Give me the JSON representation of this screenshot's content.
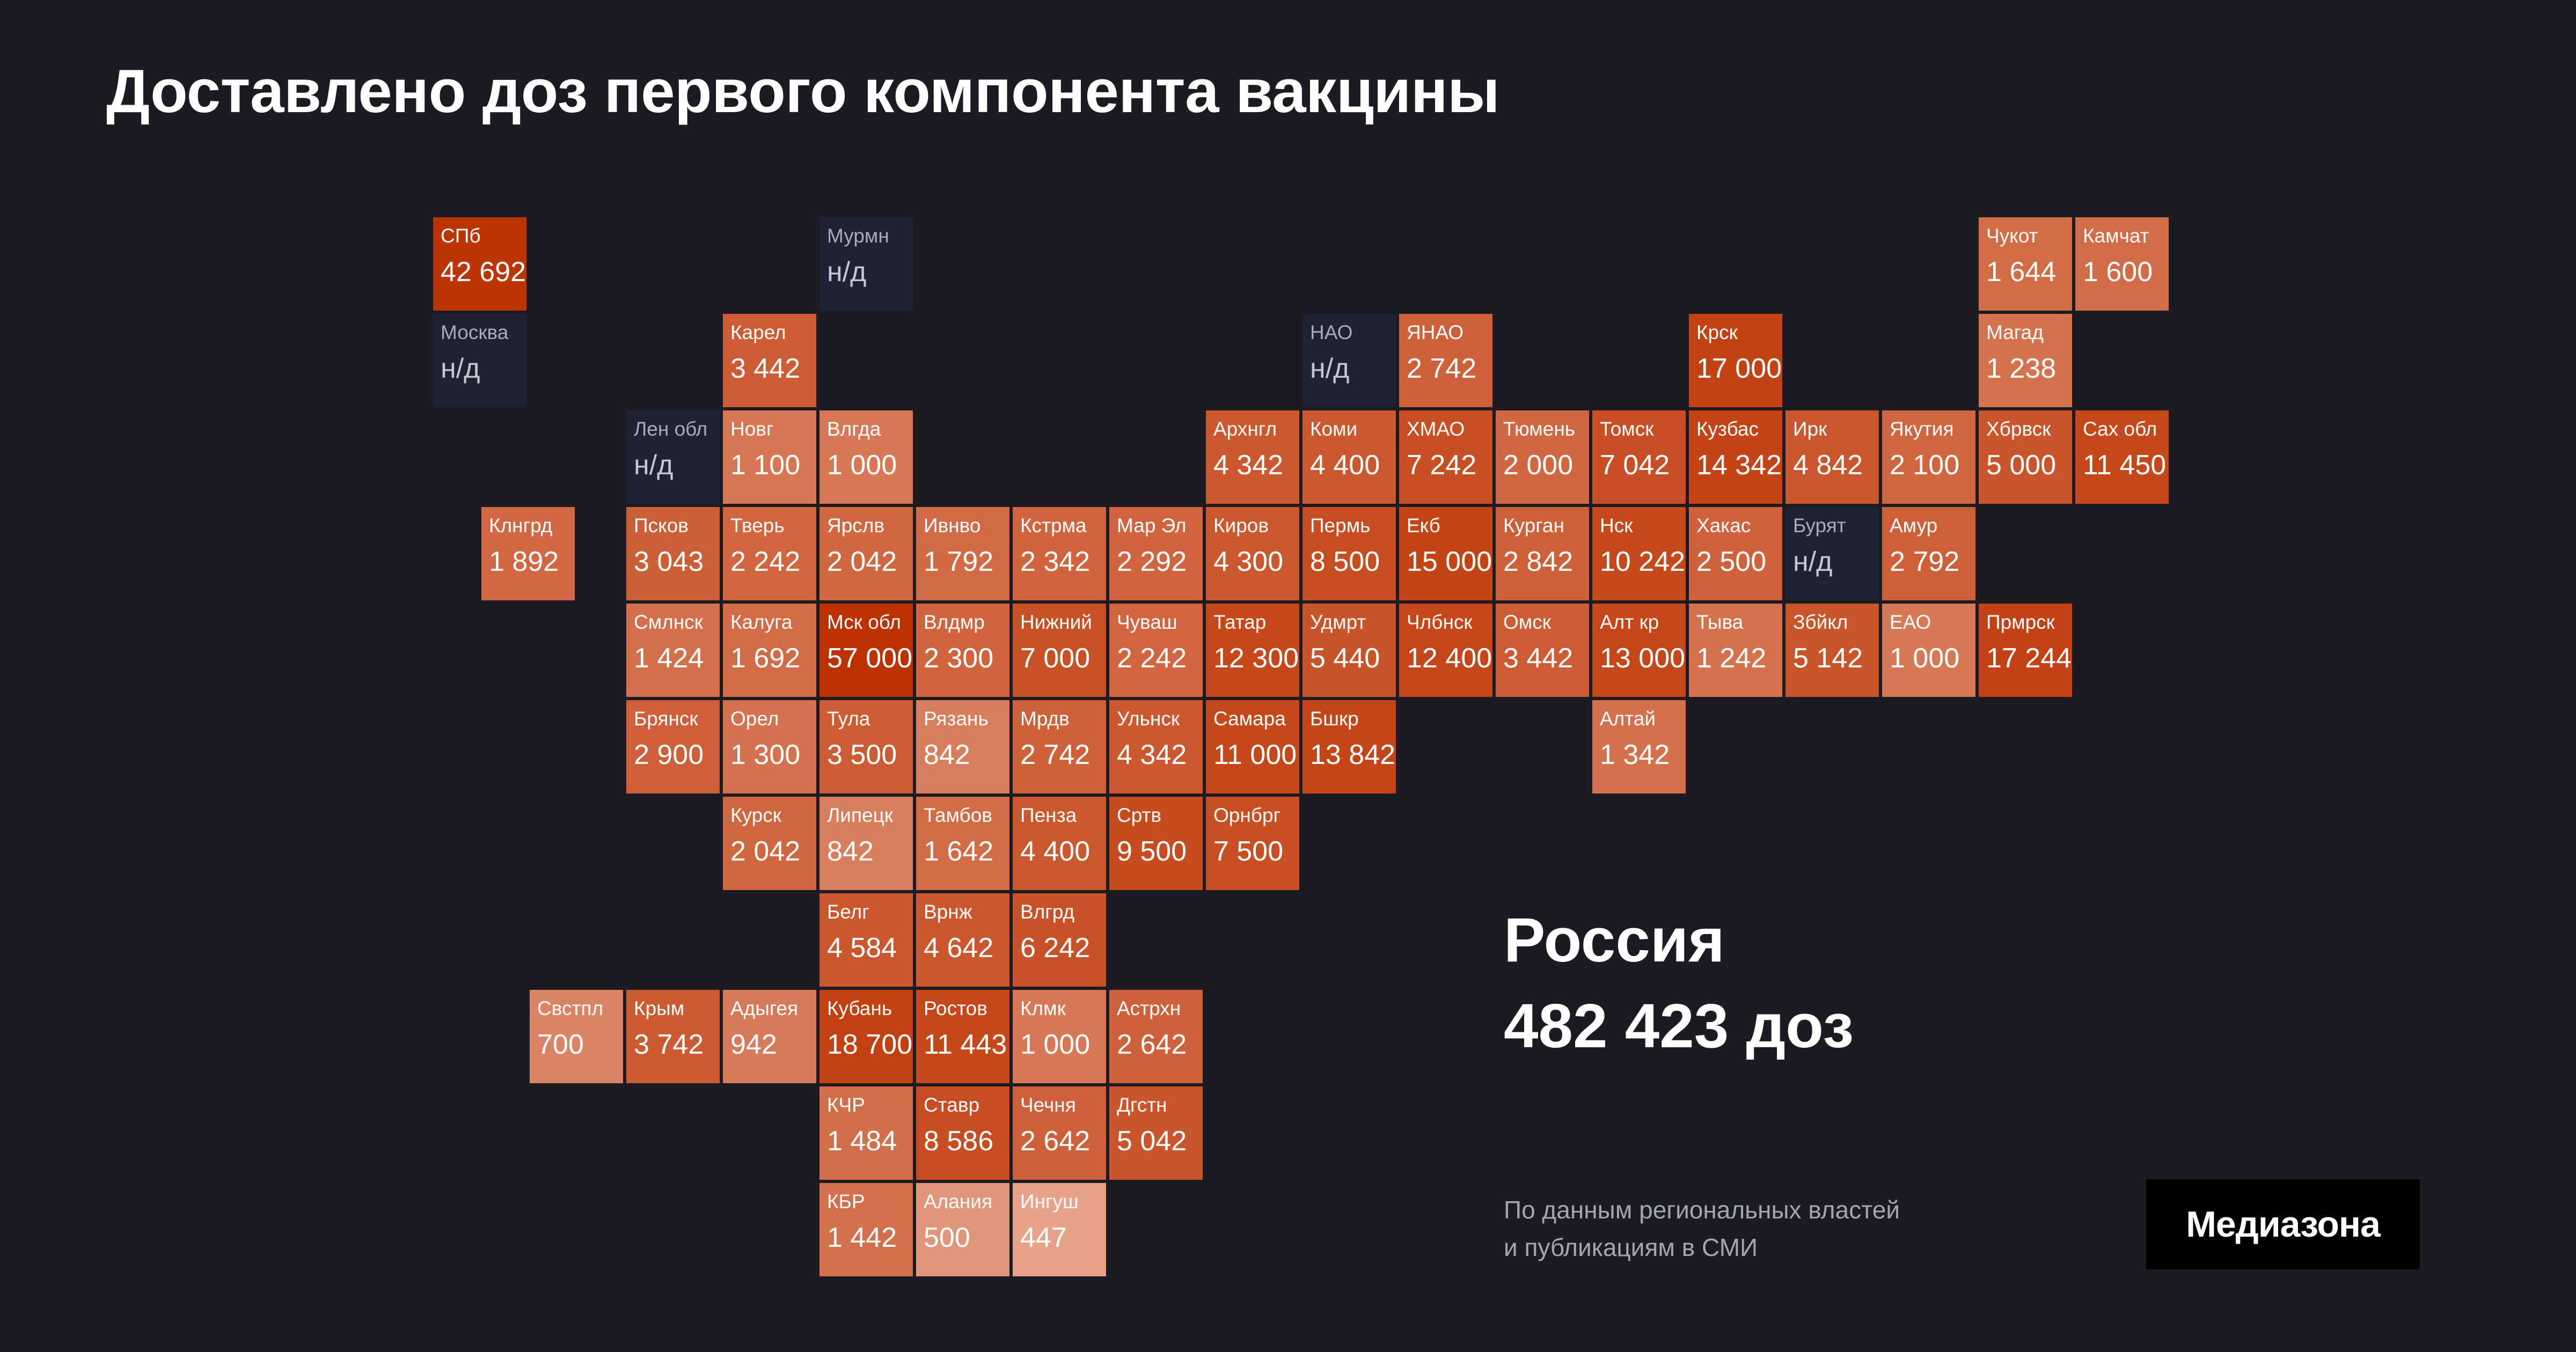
{
  "title": "Доставлено доз первого компонента вакцины",
  "total": {
    "title": "Россия",
    "value": "482 423 доз"
  },
  "source": {
    "line1": "По данным региональных властей",
    "line2": "и публикациям в СМИ"
  },
  "logo": "Медиазона",
  "colors": {
    "background": "#1b1b21",
    "nodata": "#1e2333",
    "light": "#e6a38a",
    "dark": "#bd3100"
  },
  "chart_data": {
    "type": "heatmap",
    "tiles": [
      {
        "label": "СПб",
        "display": "42 692",
        "value": 42692,
        "col": 0,
        "row": 0
      },
      {
        "label": "Мурмн",
        "display": "н/д",
        "value": null,
        "col": 4,
        "row": 0
      },
      {
        "label": "Чукот",
        "display": "1 644",
        "value": 1644,
        "col": 16,
        "row": 0
      },
      {
        "label": "Камчат",
        "display": "1 600",
        "value": 1600,
        "col": 17,
        "row": 0
      },
      {
        "label": "Москва",
        "display": "н/д",
        "value": null,
        "col": 0,
        "row": 1
      },
      {
        "label": "Карел",
        "display": "3 442",
        "value": 3442,
        "col": 3,
        "row": 1
      },
      {
        "label": "НАО",
        "display": "н/д",
        "value": null,
        "col": 9,
        "row": 1
      },
      {
        "label": "ЯНАО",
        "display": "2 742",
        "value": 2742,
        "col": 10,
        "row": 1
      },
      {
        "label": "Крск",
        "display": "17 000",
        "value": 17000,
        "col": 13,
        "row": 1
      },
      {
        "label": "Магад",
        "display": "1 238",
        "value": 1238,
        "col": 16,
        "row": 1
      },
      {
        "label": "Лен обл",
        "display": "н/д",
        "value": null,
        "col": 2,
        "row": 2
      },
      {
        "label": "Новг",
        "display": "1 100",
        "value": 1100,
        "col": 3,
        "row": 2
      },
      {
        "label": "Влгда",
        "display": "1 000",
        "value": 1000,
        "col": 4,
        "row": 2
      },
      {
        "label": "Архнгл",
        "display": "4 342",
        "value": 4342,
        "col": 8,
        "row": 2
      },
      {
        "label": "Коми",
        "display": "4 400",
        "value": 4400,
        "col": 9,
        "row": 2
      },
      {
        "label": "ХМАО",
        "display": "7 242",
        "value": 7242,
        "col": 10,
        "row": 2
      },
      {
        "label": "Тюмень",
        "display": "2 000",
        "value": 2000,
        "col": 11,
        "row": 2
      },
      {
        "label": "Томск",
        "display": "7 042",
        "value": 7042,
        "col": 12,
        "row": 2
      },
      {
        "label": "Кузбас",
        "display": "14 342",
        "value": 14342,
        "col": 13,
        "row": 2
      },
      {
        "label": "Ирк",
        "display": "4 842",
        "value": 4842,
        "col": 14,
        "row": 2
      },
      {
        "label": "Якутия",
        "display": "2 100",
        "value": 2100,
        "col": 15,
        "row": 2
      },
      {
        "label": "Хбрвск",
        "display": "5 000",
        "value": 5000,
        "col": 16,
        "row": 2
      },
      {
        "label": "Сах обл",
        "display": "11 450",
        "value": 11450,
        "col": 17,
        "row": 2
      },
      {
        "label": "Клнгрд",
        "display": "1 892",
        "value": 1892,
        "col": 0.5,
        "row": 3
      },
      {
        "label": "Псков",
        "display": "3 043",
        "value": 3043,
        "col": 2,
        "row": 3
      },
      {
        "label": "Тверь",
        "display": "2 242",
        "value": 2242,
        "col": 3,
        "row": 3
      },
      {
        "label": "Ярслв",
        "display": "2 042",
        "value": 2042,
        "col": 4,
        "row": 3
      },
      {
        "label": "Ивнво",
        "display": "1 792",
        "value": 1792,
        "col": 5,
        "row": 3
      },
      {
        "label": "Кстрма",
        "display": "2 342",
        "value": 2342,
        "col": 6,
        "row": 3
      },
      {
        "label": "Мар Эл",
        "display": "2 292",
        "value": 2292,
        "col": 7,
        "row": 3
      },
      {
        "label": "Киров",
        "display": "4 300",
        "value": 4300,
        "col": 8,
        "row": 3
      },
      {
        "label": "Пермь",
        "display": "8 500",
        "value": 8500,
        "col": 9,
        "row": 3
      },
      {
        "label": "Екб",
        "display": "15 000",
        "value": 15000,
        "col": 10,
        "row": 3
      },
      {
        "label": "Курган",
        "display": "2 842",
        "value": 2842,
        "col": 11,
        "row": 3
      },
      {
        "label": "Нск",
        "display": "10 242",
        "value": 10242,
        "col": 12,
        "row": 3
      },
      {
        "label": "Хакас",
        "display": "2 500",
        "value": 2500,
        "col": 13,
        "row": 3
      },
      {
        "label": "Бурят",
        "display": "н/д",
        "value": null,
        "col": 14,
        "row": 3
      },
      {
        "label": "Амур",
        "display": "2 792",
        "value": 2792,
        "col": 15,
        "row": 3
      },
      {
        "label": "Смлнск",
        "display": "1 424",
        "value": 1424,
        "col": 2,
        "row": 4
      },
      {
        "label": "Калуга",
        "display": "1 692",
        "value": 1692,
        "col": 3,
        "row": 4
      },
      {
        "label": "Мск обл",
        "display": "57 000",
        "value": 57000,
        "col": 4,
        "row": 4
      },
      {
        "label": "Влдмр",
        "display": "2 300",
        "value": 2300,
        "col": 5,
        "row": 4
      },
      {
        "label": "Нижний",
        "display": "7 000",
        "value": 7000,
        "col": 6,
        "row": 4
      },
      {
        "label": "Чуваш",
        "display": "2 242",
        "value": 2242,
        "col": 7,
        "row": 4
      },
      {
        "label": "Татар",
        "display": "12 300",
        "value": 12300,
        "col": 8,
        "row": 4
      },
      {
        "label": "Удмрт",
        "display": "5 440",
        "value": 5440,
        "col": 9,
        "row": 4
      },
      {
        "label": "Члбнск",
        "display": "12 400",
        "value": 12400,
        "col": 10,
        "row": 4
      },
      {
        "label": "Омск",
        "display": "3 442",
        "value": 3442,
        "col": 11,
        "row": 4
      },
      {
        "label": "Алт кр",
        "display": "13 000",
        "value": 13000,
        "col": 12,
        "row": 4
      },
      {
        "label": "Тыва",
        "display": "1 242",
        "value": 1242,
        "col": 13,
        "row": 4
      },
      {
        "label": "Збйкл",
        "display": "5 142",
        "value": 5142,
        "col": 14,
        "row": 4
      },
      {
        "label": "ЕАО",
        "display": "1 000",
        "value": 1000,
        "col": 15,
        "row": 4
      },
      {
        "label": "Прмрск",
        "display": "17 244",
        "value": 17244,
        "col": 16,
        "row": 4
      },
      {
        "label": "Брянск",
        "display": "2 900",
        "value": 2900,
        "col": 2,
        "row": 5
      },
      {
        "label": "Орел",
        "display": "1 300",
        "value": 1300,
        "col": 3,
        "row": 5
      },
      {
        "label": "Тула",
        "display": "3 500",
        "value": 3500,
        "col": 4,
        "row": 5
      },
      {
        "label": "Рязань",
        "display": "842",
        "value": 842,
        "col": 5,
        "row": 5
      },
      {
        "label": "Мрдв",
        "display": "2 742",
        "value": 2742,
        "col": 6,
        "row": 5
      },
      {
        "label": "Ульнск",
        "display": "4 342",
        "value": 4342,
        "col": 7,
        "row": 5
      },
      {
        "label": "Самара",
        "display": "11 000",
        "value": 11000,
        "col": 8,
        "row": 5
      },
      {
        "label": "Бшкр",
        "display": "13 842",
        "value": 13842,
        "col": 9,
        "row": 5
      },
      {
        "label": "Алтай",
        "display": "1 342",
        "value": 1342,
        "col": 12,
        "row": 5
      },
      {
        "label": "Курск",
        "display": "2 042",
        "value": 2042,
        "col": 3,
        "row": 6
      },
      {
        "label": "Липецк",
        "display": "842",
        "value": 842,
        "col": 4,
        "row": 6
      },
      {
        "label": "Тамбов",
        "display": "1 642",
        "value": 1642,
        "col": 5,
        "row": 6
      },
      {
        "label": "Пенза",
        "display": "4 400",
        "value": 4400,
        "col": 6,
        "row": 6
      },
      {
        "label": "Сртв",
        "display": "9 500",
        "value": 9500,
        "col": 7,
        "row": 6
      },
      {
        "label": "Орнбрг",
        "display": "7 500",
        "value": 7500,
        "col": 8,
        "row": 6
      },
      {
        "label": "Белг",
        "display": "4 584",
        "value": 4584,
        "col": 4,
        "row": 7
      },
      {
        "label": "Врнж",
        "display": "4 642",
        "value": 4642,
        "col": 5,
        "row": 7
      },
      {
        "label": "Влгрд",
        "display": "6 242",
        "value": 6242,
        "col": 6,
        "row": 7
      },
      {
        "label": "Свстпл",
        "display": "700",
        "value": 700,
        "col": 1,
        "row": 8
      },
      {
        "label": "Крым",
        "display": "3 742",
        "value": 3742,
        "col": 2,
        "row": 8
      },
      {
        "label": "Адыгея",
        "display": "942",
        "value": 942,
        "col": 3,
        "row": 8
      },
      {
        "label": "Кубань",
        "display": "18 700",
        "value": 18700,
        "col": 4,
        "row": 8
      },
      {
        "label": "Ростов",
        "display": "11 443",
        "value": 11443,
        "col": 5,
        "row": 8
      },
      {
        "label": "Клмк",
        "display": "1 000",
        "value": 1000,
        "col": 6,
        "row": 8
      },
      {
        "label": "Астрхн",
        "display": "2 642",
        "value": 2642,
        "col": 7,
        "row": 8
      },
      {
        "label": "КЧР",
        "display": "1 484",
        "value": 1484,
        "col": 4,
        "row": 9
      },
      {
        "label": "Ставр",
        "display": "8 586",
        "value": 8586,
        "col": 5,
        "row": 9
      },
      {
        "label": "Чечня",
        "display": "2 642",
        "value": 2642,
        "col": 6,
        "row": 9
      },
      {
        "label": "Дгстн",
        "display": "5 042",
        "value": 5042,
        "col": 7,
        "row": 9
      },
      {
        "label": "КБР",
        "display": "1 442",
        "value": 1442,
        "col": 4,
        "row": 10
      },
      {
        "label": "Алания",
        "display": "500",
        "value": 500,
        "col": 5,
        "row": 10
      },
      {
        "label": "Ингуш",
        "display": "447",
        "value": 447,
        "col": 6,
        "row": 10
      }
    ]
  }
}
